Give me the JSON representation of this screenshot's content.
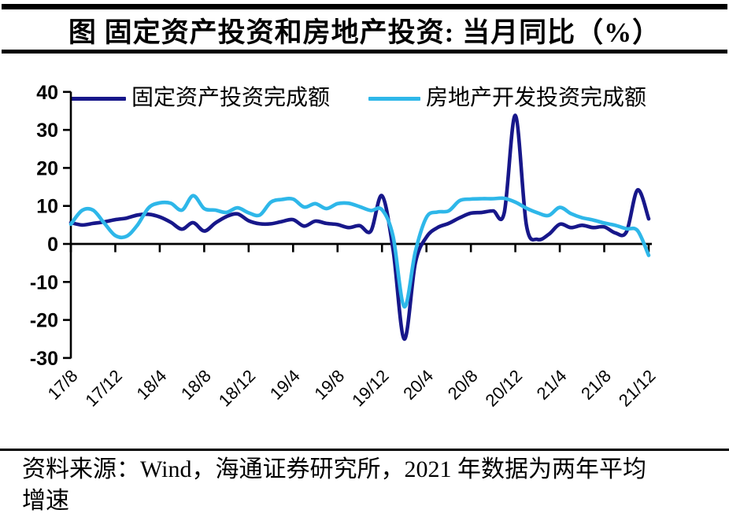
{
  "page": {
    "title": "图 固定资产投资和房地产投资: 当月同比（%）",
    "footer_line1": "资料来源：Wind，海通证券研究所，2021 年数据为两年平均",
    "footer_line2": "增速"
  },
  "chart_data": {
    "type": "line",
    "title": "固定资产投资和房地产投资: 当月同比（%）",
    "x_frequency": "monthly",
    "x_start": "2017/8",
    "x_end": "2021/12",
    "x_tick_every_months": 4,
    "x_tick_labels": [
      "17/8",
      "17/12",
      "18/4",
      "18/8",
      "18/12",
      "19/4",
      "19/8",
      "19/12",
      "20/4",
      "20/8",
      "20/12",
      "21/4",
      "21/8",
      "21/12"
    ],
    "ylim": [
      -30,
      40
    ],
    "y_ticks": [
      40,
      30,
      20,
      10,
      0,
      -10,
      -20,
      -30
    ],
    "grid": false,
    "legend_position": "top",
    "axis_color": "#000000",
    "series": [
      {
        "name": "固定资产投资完成额",
        "color": "#17178A",
        "values": [
          5.6,
          5.0,
          5.4,
          5.8,
          6.4,
          6.8,
          7.6,
          7.8,
          7.1,
          5.7,
          3.9,
          5.6,
          3.4,
          5.5,
          7.2,
          7.9,
          6.1,
          5.3,
          5.3,
          5.9,
          6.4,
          4.7,
          6.0,
          5.4,
          5.1,
          4.3,
          4.8,
          3.4,
          12.7,
          -1.5,
          -25.0,
          -5.0,
          1.8,
          4.3,
          5.4,
          6.9,
          8.1,
          8.3,
          8.7,
          8.2,
          33.8,
          4.9,
          1.2,
          2.5,
          5.2,
          4.3,
          4.9,
          4.3,
          4.5,
          2.9,
          3.2,
          14.2,
          6.6
        ]
      },
      {
        "name": "房地产开发投资完成额",
        "color": "#2EB7E9",
        "values": [
          5.2,
          8.8,
          8.9,
          5.5,
          2.2,
          2.0,
          5.0,
          9.5,
          10.8,
          10.7,
          8.9,
          12.7,
          9.3,
          8.9,
          8.3,
          9.5,
          8.2,
          7.6,
          11.0,
          11.7,
          11.8,
          9.7,
          10.6,
          9.3,
          10.6,
          10.7,
          9.8,
          8.8,
          9.0,
          2.0,
          -16.5,
          -2.0,
          7.0,
          8.4,
          8.7,
          11.4,
          11.8,
          11.9,
          11.9,
          12.0,
          11.0,
          9.4,
          8.2,
          7.5,
          9.6,
          8.0,
          6.9,
          6.3,
          5.5,
          4.9,
          4.0,
          3.5,
          -3.0
        ]
      }
    ]
  }
}
